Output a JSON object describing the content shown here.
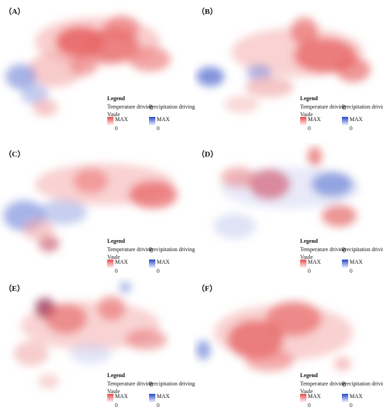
{
  "panels": [
    {
      "label": "（A）"
    },
    {
      "label": "（B）"
    },
    {
      "label": "（C）"
    },
    {
      "label": "（D）"
    },
    {
      "label": "（E）"
    },
    {
      "label": "（F）"
    }
  ],
  "legend": {
    "title": "Legend",
    "temperature": "Temperature driving",
    "precipitation": "Precipitation driving",
    "vaule": "Vaule",
    "max": "MAX",
    "zero": "0"
  },
  "colors": {
    "temperature": "#e84a4a",
    "precipitation": "#2546c8",
    "background": "#ffffff"
  }
}
